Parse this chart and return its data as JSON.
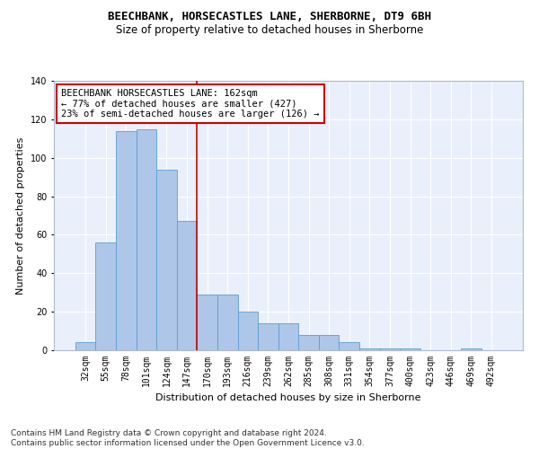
{
  "title1": "BEECHBANK, HORSECASTLES LANE, SHERBORNE, DT9 6BH",
  "title2": "Size of property relative to detached houses in Sherborne",
  "xlabel": "Distribution of detached houses by size in Sherborne",
  "ylabel": "Number of detached properties",
  "categories": [
    "32sqm",
    "55sqm",
    "78sqm",
    "101sqm",
    "124sqm",
    "147sqm",
    "170sqm",
    "193sqm",
    "216sqm",
    "239sqm",
    "262sqm",
    "285sqm",
    "308sqm",
    "331sqm",
    "354sqm",
    "377sqm",
    "400sqm",
    "423sqm",
    "446sqm",
    "469sqm",
    "492sqm"
  ],
  "values": [
    4,
    56,
    114,
    115,
    94,
    67,
    29,
    29,
    20,
    14,
    14,
    8,
    8,
    4,
    1,
    1,
    1,
    0,
    0,
    1,
    0
  ],
  "bar_color": "#aec6e8",
  "bar_edge_color": "#5a9fd4",
  "vline_x": 5.5,
  "vline_color": "#cc0000",
  "annotation_box_text": "BEECHBANK HORSECASTLES LANE: 162sqm\n← 77% of detached houses are smaller (427)\n23% of semi-detached houses are larger (126) →",
  "box_edge_color": "#cc0000",
  "footnote": "Contains HM Land Registry data © Crown copyright and database right 2024.\nContains public sector information licensed under the Open Government Licence v3.0.",
  "ylim": [
    0,
    140
  ],
  "yticks": [
    0,
    20,
    40,
    60,
    80,
    100,
    120,
    140
  ],
  "bg_color": "#eaf0fb",
  "grid_color": "#ffffff",
  "title_fontsize": 9,
  "subtitle_fontsize": 8.5,
  "axis_label_fontsize": 8,
  "tick_fontsize": 7,
  "annotation_fontsize": 7.5,
  "footnote_fontsize": 6.5
}
